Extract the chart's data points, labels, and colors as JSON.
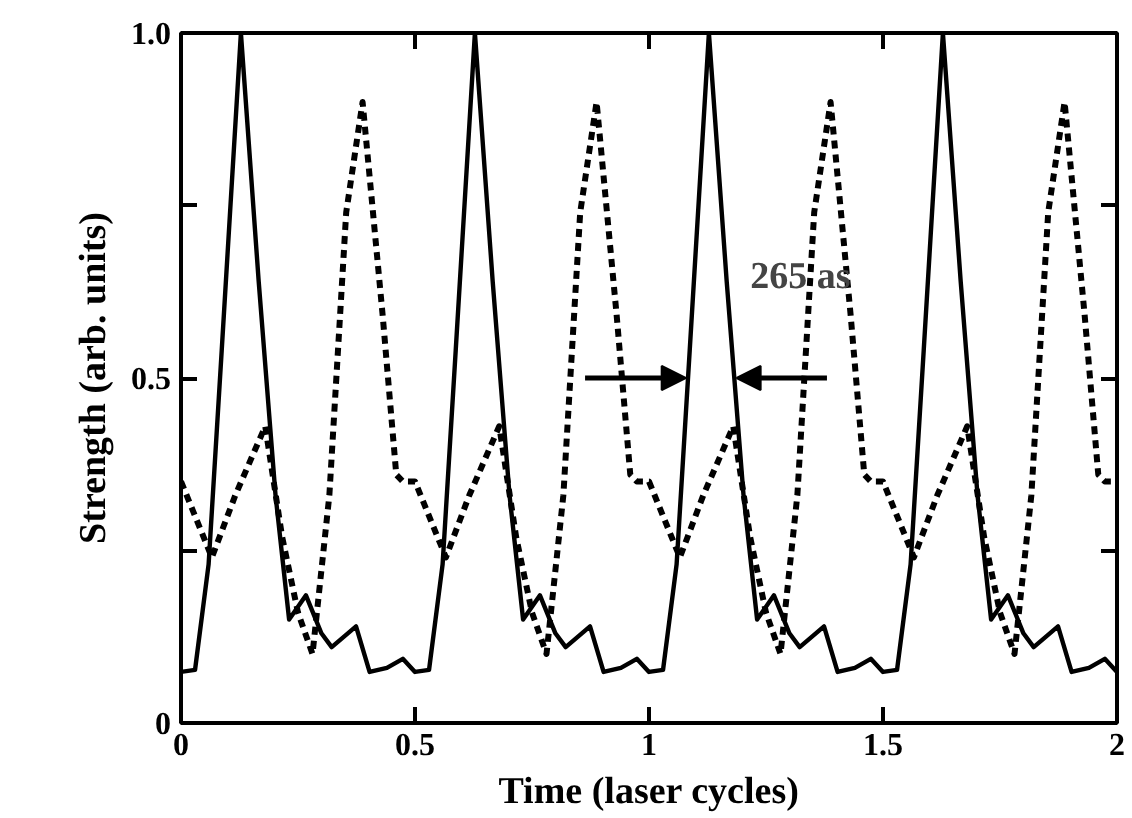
{
  "chart_data": {
    "type": "line",
    "xlabel": "Time (laser cycles)",
    "ylabel": "Strength (arb. units)",
    "xlim": [
      0,
      2
    ],
    "ylim": [
      0,
      1
    ],
    "xticks": [
      0,
      0.5,
      1,
      1.5,
      2
    ],
    "yticks": [
      0,
      {
        "value": 0.25,
        "label": null
      },
      0.5,
      {
        "value": 0.75,
        "label": null
      },
      {
        "value": 1,
        "label": "1.0"
      }
    ],
    "grid": false,
    "marker": "none",
    "annotations": [
      "265 as"
    ],
    "series": [
      {
        "color": "#000000",
        "line_style": "solid",
        "x": [
          0,
          0.03,
          0.059,
          0.087,
          0.128,
          0.166,
          0.202,
          0.231,
          0.267,
          0.3,
          0.322,
          0.374,
          0.403,
          0.44,
          0.474,
          0.5,
          0.53,
          0.559,
          0.587,
          0.628,
          0.666,
          0.702,
          0.731,
          0.767,
          0.8,
          0.822,
          0.874,
          0.903,
          0.94,
          0.974,
          1,
          1.03,
          1.059,
          1.087,
          1.128,
          1.166,
          1.202,
          1.231,
          1.267,
          1.3,
          1.322,
          1.374,
          1.403,
          1.44,
          1.474,
          1.5,
          1.53,
          1.559,
          1.587,
          1.628,
          1.666,
          1.702,
          1.731,
          1.767,
          1.8,
          1.822,
          1.874,
          1.903,
          1.94,
          1.974,
          2
        ],
        "values": [
          0.074,
          0.077,
          0.23,
          0.54,
          1.0,
          0.64,
          0.33,
          0.15,
          0.185,
          0.13,
          0.11,
          0.14,
          0.074,
          0.08,
          0.093,
          0.074,
          0.077,
          0.23,
          0.54,
          1.0,
          0.64,
          0.33,
          0.15,
          0.185,
          0.13,
          0.11,
          0.14,
          0.074,
          0.08,
          0.093,
          0.074,
          0.077,
          0.23,
          0.54,
          1.0,
          0.64,
          0.33,
          0.15,
          0.185,
          0.13,
          0.11,
          0.14,
          0.074,
          0.08,
          0.093,
          0.074,
          0.077,
          0.23,
          0.54,
          1.0,
          0.64,
          0.33,
          0.15,
          0.185,
          0.13,
          0.11,
          0.14,
          0.074,
          0.08,
          0.093,
          0.074
        ]
      },
      {
        "color": "#000000",
        "line_style": "dotted",
        "x": [
          0,
          0.066,
          0.116,
          0.18,
          0.216,
          0.25,
          0.281,
          0.317,
          0.353,
          0.388,
          0.431,
          0.46,
          0.474,
          0.5,
          0.566,
          0.616,
          0.68,
          0.716,
          0.75,
          0.781,
          0.817,
          0.853,
          0.888,
          0.931,
          0.96,
          0.974,
          1,
          1.066,
          1.116,
          1.18,
          1.216,
          1.25,
          1.281,
          1.317,
          1.353,
          1.388,
          1.431,
          1.46,
          1.474,
          1.5,
          1.566,
          1.616,
          1.68,
          1.716,
          1.75,
          1.781,
          1.817,
          1.853,
          1.888,
          1.931,
          1.96,
          1.974,
          2
        ],
        "values": [
          0.35,
          0.24,
          0.33,
          0.43,
          0.27,
          0.16,
          0.1,
          0.33,
          0.74,
          0.9,
          0.59,
          0.36,
          0.35,
          0.35,
          0.24,
          0.33,
          0.43,
          0.27,
          0.16,
          0.1,
          0.33,
          0.74,
          0.9,
          0.59,
          0.36,
          0.35,
          0.35,
          0.24,
          0.33,
          0.43,
          0.27,
          0.16,
          0.1,
          0.33,
          0.74,
          0.9,
          0.59,
          0.36,
          0.35,
          0.35,
          0.24,
          0.33,
          0.43,
          0.27,
          0.16,
          0.1,
          0.33,
          0.74,
          0.9,
          0.59,
          0.36,
          0.35,
          0.35
        ]
      }
    ]
  }
}
